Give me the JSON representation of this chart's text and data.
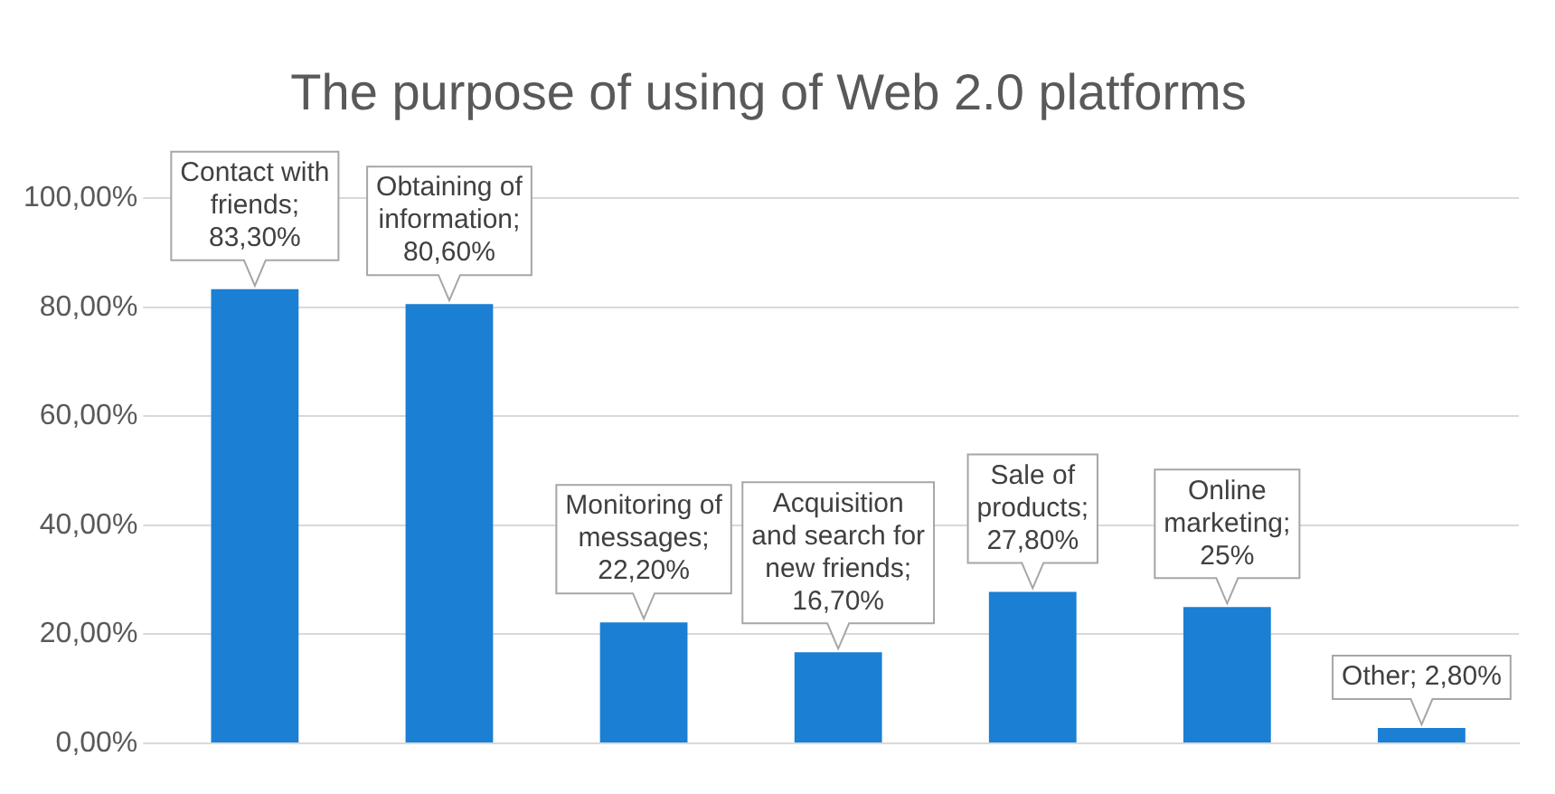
{
  "chart_data": {
    "type": "bar",
    "title": "The purpose of using of Web 2.0 platforms",
    "categories": [
      null,
      null,
      null,
      null,
      null,
      null,
      null
    ],
    "values": [
      83.3,
      80.6,
      22.2,
      16.7,
      27.8,
      25,
      2.8
    ],
    "value_labels": [
      "Contact with friends; 83,30%",
      "Obtaining of information; 80,60%",
      "Monitoring of messages; 22,20%",
      "Acquisition and search for new friends; 16,70%",
      "Sale of products; 27,80%",
      "Online marketing; 25%",
      "Other; 2,80%"
    ],
    "color": "#1b7fd3",
    "ylim": [
      0,
      100
    ],
    "yticks": [
      {
        "value": 0,
        "label": "0,00%"
      },
      {
        "value": 20,
        "label": "20,00%"
      },
      {
        "value": 40,
        "label": "40,00%"
      },
      {
        "value": 60,
        "label": "60,00%"
      },
      {
        "value": 80,
        "label": "80,00%"
      },
      {
        "value": 100,
        "label": "100,00%"
      }
    ],
    "grid": "y",
    "tick_labels": "y",
    "legend": false
  }
}
